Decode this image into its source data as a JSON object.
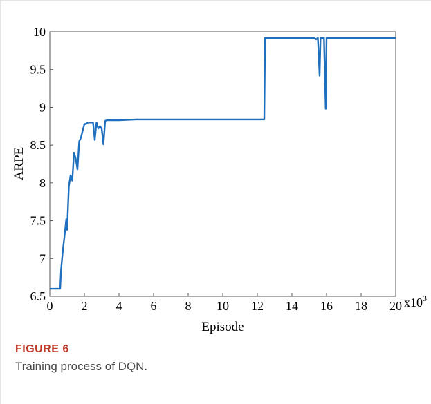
{
  "figure": {
    "label": "FIGURE 6",
    "caption": "Training process of DQN."
  },
  "chart_data": {
    "type": "line",
    "title": "",
    "xlabel": "Episode",
    "ylabel": "ARPE",
    "x_multiplier_label": "x10",
    "x_multiplier_exponent": "3",
    "xlim": [
      0,
      20
    ],
    "ylim": [
      6.5,
      10
    ],
    "xticks": [
      0,
      2,
      4,
      6,
      8,
      10,
      12,
      14,
      16,
      18,
      20
    ],
    "yticks": [
      6.5,
      7,
      7.5,
      8,
      8.5,
      9,
      9.5,
      10
    ],
    "ytick_labels": [
      "6.5",
      "7",
      "7.5",
      "8",
      "8.5",
      "9",
      "9.5",
      "10"
    ],
    "line_color": "#1f6fbf",
    "grid": false,
    "series": [
      {
        "x": [
          0,
          0.6,
          0.65,
          0.75,
          0.85,
          0.95,
          1.0,
          1.1,
          1.2,
          1.3,
          1.4,
          1.5,
          1.6,
          1.7,
          1.8,
          2.0,
          2.1,
          2.2,
          2.3,
          2.5,
          2.6,
          2.7,
          2.8,
          2.9,
          3.0,
          3.1,
          3.2,
          3.3,
          3.5,
          4.0,
          5.0,
          8.0,
          10.0,
          12.4,
          12.45,
          14.0,
          15.3,
          15.4,
          15.5,
          15.6,
          15.65,
          15.75,
          15.85,
          15.95,
          16.0,
          16.05,
          16.2,
          20.0
        ],
        "y": [
          6.6,
          6.6,
          6.85,
          7.1,
          7.3,
          7.52,
          7.38,
          7.95,
          8.1,
          8.03,
          8.4,
          8.32,
          8.18,
          8.55,
          8.6,
          8.78,
          8.78,
          8.8,
          8.8,
          8.8,
          8.57,
          8.8,
          8.72,
          8.75,
          8.72,
          8.51,
          8.82,
          8.83,
          8.83,
          8.83,
          8.84,
          8.84,
          8.84,
          8.84,
          9.92,
          9.92,
          9.92,
          9.9,
          9.92,
          9.42,
          9.92,
          9.92,
          9.92,
          8.98,
          9.92,
          9.92,
          9.92,
          9.92
        ]
      }
    ]
  }
}
